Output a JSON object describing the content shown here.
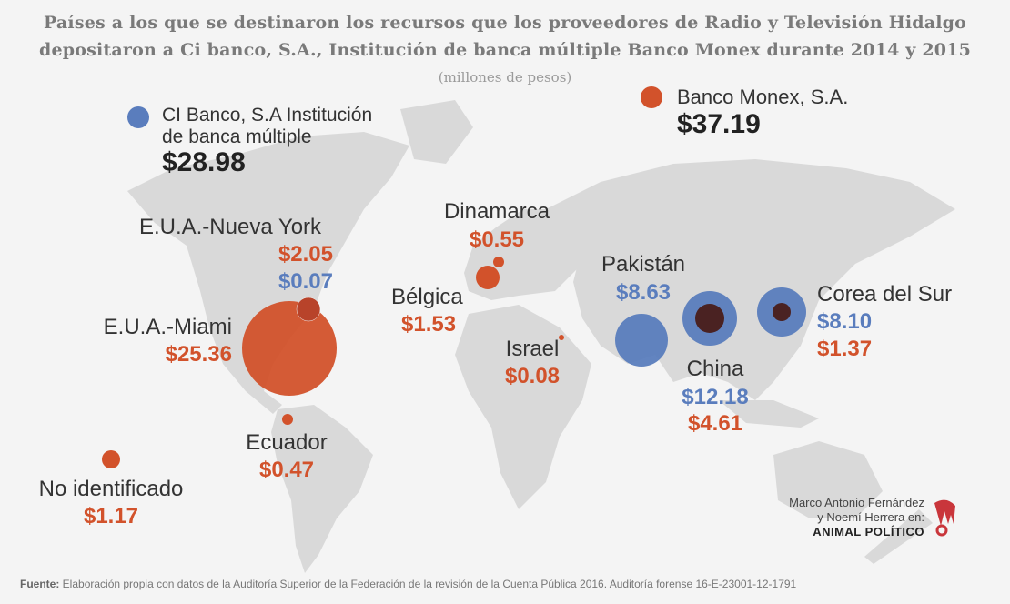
{
  "title_line1": "Países a los que se destinaron los recursos que los proveedores de Radio y Televisión Hidalgo",
  "title_line2": "depositaron a Ci banco, S.A., Institución de banca múltiple Banco Monex durante 2014 y 2015",
  "subtitle": "(millones de pesos)",
  "colors": {
    "ci_banco": "#5a7dbd",
    "monex": "#d2522b",
    "overlap": "#4a2222",
    "land": "#d9d9d9",
    "background": "#f4f4f4"
  },
  "legend": {
    "ci": {
      "line1": "CI Banco, S.A Institución",
      "line2": "de banca múltiple",
      "total": "$28.98"
    },
    "monex": {
      "line1": "Banco Monex, S.A.",
      "total": "$37.19"
    }
  },
  "locations": {
    "nueva_york": {
      "name": "E.U.A.-Nueva York",
      "monex": "$2.05",
      "ci": "$0.07"
    },
    "miami": {
      "name": "E.U.A.-Miami",
      "monex": "$25.36"
    },
    "ecuador": {
      "name": "Ecuador",
      "monex": "$0.47"
    },
    "no_identificado": {
      "name": "No identificado",
      "monex": "$1.17"
    },
    "dinamarca": {
      "name": "Dinamarca",
      "monex": "$0.55"
    },
    "belgica": {
      "name": "Bélgica",
      "monex": "$1.53"
    },
    "israel": {
      "name": "Israel",
      "monex": "$0.08"
    },
    "pakistan": {
      "name": "Pakistán",
      "ci": "$8.63"
    },
    "china": {
      "name": "China",
      "ci": "$12.18",
      "monex": "$4.61"
    },
    "corea": {
      "name": "Corea del Sur",
      "ci": "$8.10",
      "monex": "$1.37"
    }
  },
  "credit": {
    "line1": "Marco Antonio Fernández",
    "line2": "y Noemí Herrera en:",
    "brand": "ANIMAL POLÍTICO"
  },
  "footer": {
    "label": "Fuente:",
    "text": " Elaboración propia con datos de la  Auditoría Superior de la Federación de la revisión de la Cuenta Pública 2016.  Auditoría forense 16-E-23001-12-1791"
  }
}
